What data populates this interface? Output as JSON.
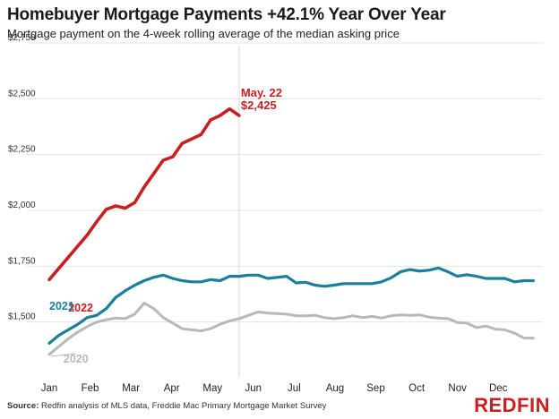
{
  "title": "Homebuyer Mortgage Payments +42.1% Year Over Year",
  "subtitle": "Mortgage payment on the 4-week rolling average of the median asking price",
  "source_prefix": "Source:",
  "source_text": " Redfin analysis of MLS data, Freddie Mac Primary Mortgage Market Survey",
  "brand": "REDFIN",
  "colors": {
    "2022": "#c82021",
    "2021": "#1a7f9c",
    "2020": "#b8b8b8",
    "grid": "#e3e3e3"
  },
  "chart_data": {
    "type": "line",
    "title": "Homebuyer Mortgage Payments +42.1% Year Over Year",
    "subtitle": "Mortgage payment on the 4-week rolling average of the median asking price",
    "ylim": [
      1250,
      2750
    ],
    "yticks": [
      1500,
      1750,
      2000,
      2250,
      2500,
      2750
    ],
    "ytick_labels": [
      "$1,500",
      "$1,750",
      "$2,000",
      "$2,250",
      "$2,500",
      "$2,750"
    ],
    "xlim": [
      0,
      52
    ],
    "x_ticks": [
      0,
      4.3,
      8.6,
      12.9,
      17.2,
      21.5,
      25.8,
      30.1,
      34.4,
      38.7,
      43.0,
      47.3
    ],
    "x_tick_labels": [
      "Jan",
      "Feb",
      "Mar",
      "Apr",
      "May",
      "Jun",
      "Jul",
      "Aug",
      "Sep",
      "Oct",
      "Nov",
      "Dec"
    ],
    "grid": "horizontal",
    "series": [
      {
        "name": "2022",
        "label_x": 2.0,
        "label_y": 1546,
        "x": [
          0,
          1,
          2,
          3,
          4,
          5,
          6,
          7,
          8,
          9,
          10,
          11,
          12,
          13,
          14,
          15,
          16,
          17,
          18,
          19,
          20
        ],
        "values": [
          1690,
          1740,
          1790,
          1840,
          1890,
          1950,
          2005,
          2020,
          2010,
          2035,
          2105,
          2165,
          2225,
          2240,
          2300,
          2320,
          2340,
          2405,
          2425,
          2455,
          2425
        ]
      },
      {
        "name": "2021",
        "label_x": 0,
        "label_y": 1555,
        "x": [
          0,
          1,
          2,
          3,
          4,
          5,
          6,
          7,
          8,
          9,
          10,
          11,
          12,
          13,
          14,
          15,
          16,
          17,
          18,
          19,
          20,
          21,
          22,
          23,
          24,
          25,
          26,
          27,
          28,
          29,
          30,
          31,
          32,
          33,
          34,
          35,
          36,
          37,
          38,
          39,
          40,
          41,
          42,
          43,
          44,
          45,
          46,
          47,
          48,
          49,
          50,
          51
        ],
        "values": [
          1405,
          1440,
          1465,
          1490,
          1520,
          1530,
          1560,
          1610,
          1640,
          1665,
          1685,
          1700,
          1710,
          1695,
          1685,
          1680,
          1680,
          1690,
          1685,
          1705,
          1705,
          1710,
          1710,
          1695,
          1700,
          1705,
          1675,
          1678,
          1665,
          1660,
          1665,
          1672,
          1672,
          1672,
          1672,
          1680,
          1698,
          1725,
          1735,
          1728,
          1732,
          1742,
          1725,
          1705,
          1712,
          1705,
          1695,
          1695,
          1695,
          1680,
          1685,
          1685
        ]
      },
      {
        "name": "2020",
        "label_x": 1.5,
        "label_y": 1318,
        "x": [
          0,
          1,
          2,
          3,
          4,
          5,
          6,
          7,
          8,
          9,
          10,
          11,
          12,
          13,
          14,
          15,
          16,
          17,
          18,
          19,
          20,
          21,
          22,
          23,
          24,
          25,
          26,
          27,
          28,
          29,
          30,
          31,
          32,
          33,
          34,
          35,
          36,
          37,
          38,
          39,
          40,
          41,
          42,
          43,
          44,
          45,
          46,
          47,
          48,
          49,
          50,
          51
        ],
        "values": [
          1355,
          1390,
          1425,
          1455,
          1480,
          1500,
          1510,
          1518,
          1515,
          1535,
          1585,
          1560,
          1520,
          1495,
          1470,
          1465,
          1460,
          1470,
          1490,
          1505,
          1515,
          1530,
          1545,
          1540,
          1538,
          1535,
          1528,
          1528,
          1530,
          1520,
          1515,
          1520,
          1528,
          1520,
          1525,
          1518,
          1528,
          1532,
          1530,
          1532,
          1522,
          1518,
          1515,
          1498,
          1495,
          1475,
          1482,
          1468,
          1465,
          1450,
          1428,
          1428
        ]
      }
    ],
    "annotation": {
      "x": 20,
      "lines": [
        "May. 22",
        "$2,425"
      ]
    },
    "reference_line_x": 20
  }
}
